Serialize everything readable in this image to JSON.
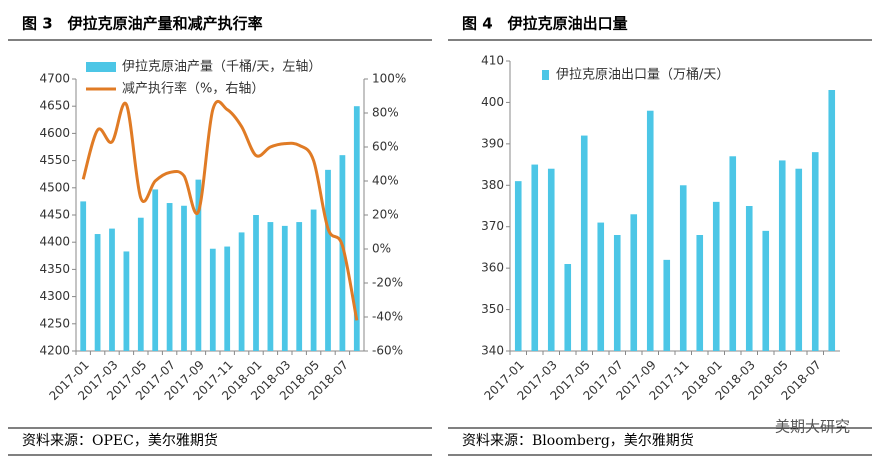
{
  "chart_data": [
    {
      "type": "bar",
      "title": "图 3　伊拉克原油产量和减产执行率",
      "categories": [
        "2017-01",
        null,
        "2017-03",
        null,
        "2017-05",
        null,
        "2017-07",
        null,
        "2017-09",
        null,
        "2017-11",
        null,
        "2018-01",
        null,
        "2018-03",
        null,
        "2018-05",
        null,
        "2018-07",
        null
      ],
      "series": [
        {
          "name": "伊拉克原油产量（千桶/天，左轴）",
          "type": "bar",
          "color": "#4cc6e6",
          "axis": "y",
          "values": [
            4475,
            4415,
            4425,
            4383,
            4445,
            4497,
            4472,
            4467,
            4515,
            4388,
            4392,
            4418,
            4450,
            4437,
            4430,
            4437,
            4460,
            4533,
            4560,
            4650
          ]
        },
        {
          "name": "减产执行率（%，右轴）",
          "type": "line",
          "color": "#e07b25",
          "axis": "y2",
          "values": [
            41,
            70,
            63,
            85,
            30,
            40,
            45,
            43,
            22,
            82,
            82,
            72,
            55,
            60,
            62,
            61,
            52,
            12,
            2,
            -42
          ]
        }
      ],
      "ylim": [
        4200,
        4700
      ],
      "yticks": [
        4200,
        4250,
        4300,
        4350,
        4400,
        4450,
        4500,
        4550,
        4600,
        4650,
        4700
      ],
      "y2lim": [
        -60,
        100
      ],
      "y2ticks": [
        {
          "value": -60,
          "label": "-60%"
        },
        {
          "value": -40,
          "label": "-40%"
        },
        {
          "value": -20,
          "label": "-20%"
        },
        {
          "value": 0,
          "label": "0%"
        },
        {
          "value": 20,
          "label": "20%"
        },
        {
          "value": 40,
          "label": "40%"
        },
        {
          "value": 60,
          "label": "60%"
        },
        {
          "value": 80,
          "label": "80%"
        },
        {
          "value": 100,
          "label": "100%"
        }
      ],
      "legend": "top-left",
      "grid": false,
      "source": "资料来源：OPEC，美尔雅期货"
    },
    {
      "type": "bar",
      "title": "图 4　伊拉克原油出口量",
      "categories": [
        "2017-01",
        null,
        "2017-03",
        null,
        "2017-05",
        null,
        "2017-07",
        null,
        "2017-09",
        null,
        "2017-11",
        null,
        "2018-01",
        null,
        "2018-03",
        null,
        "2018-05",
        null,
        "2018-07",
        null
      ],
      "series": [
        {
          "name": "伊拉克原油出口量（万桶/天）",
          "type": "bar",
          "color": "#4cc6e6",
          "axis": "y",
          "values": [
            381,
            385,
            384,
            361,
            392,
            371,
            368,
            373,
            398,
            362,
            380,
            368,
            376,
            387,
            375,
            369,
            386,
            384,
            388,
            403
          ]
        }
      ],
      "ylim": [
        340,
        410
      ],
      "yticks": [
        340,
        350,
        360,
        370,
        380,
        390,
        400,
        410
      ],
      "legend": "top-left",
      "grid": false,
      "source": "资料来源：Bloomberg，美尔雅期货",
      "watermark": "美期大研究"
    }
  ]
}
